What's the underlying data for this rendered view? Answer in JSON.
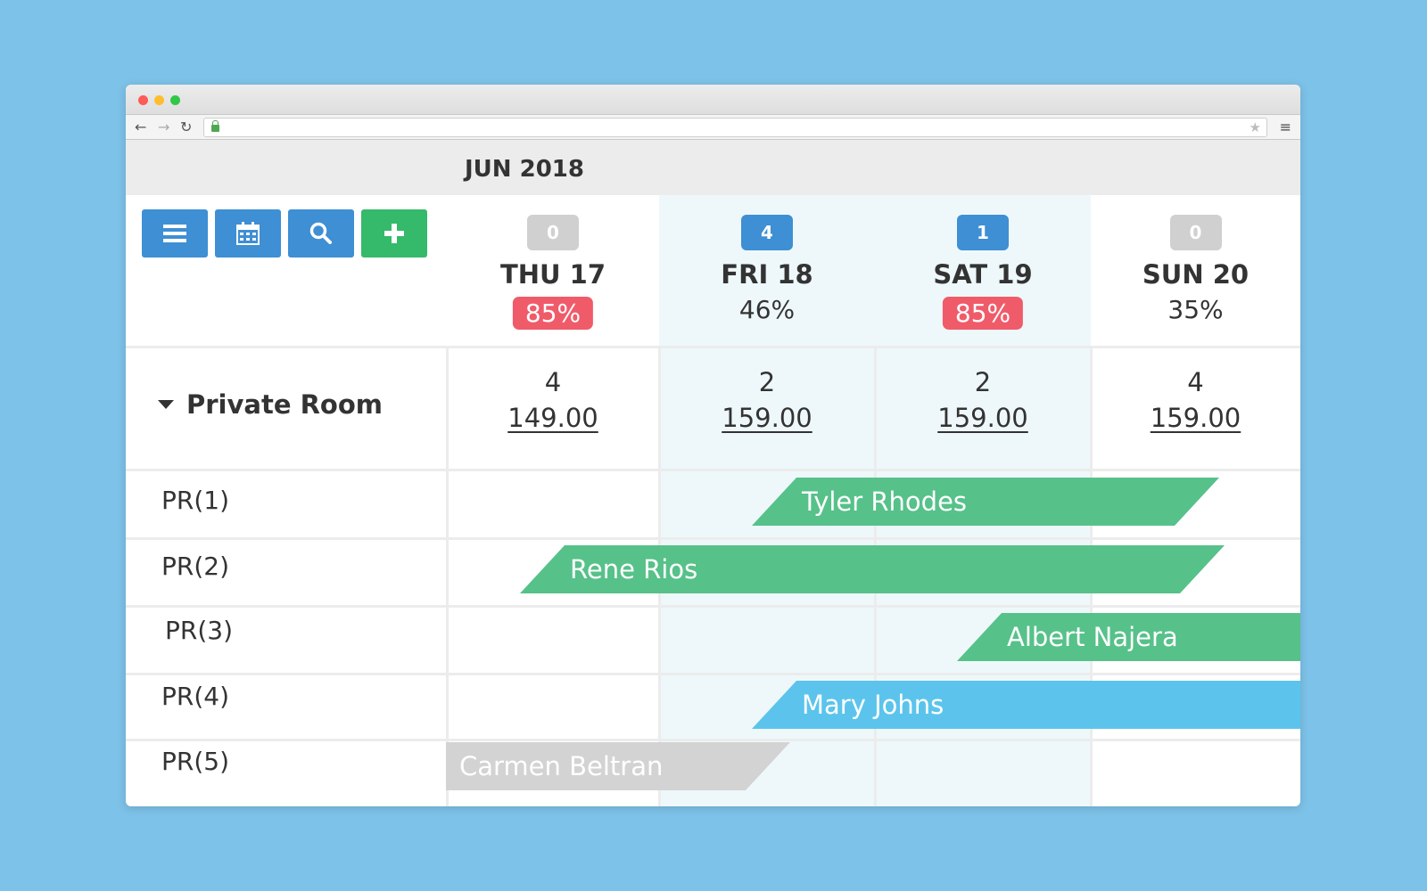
{
  "browser": {
    "back_icon": "arrow-left-icon",
    "forward_icon": "arrow-right-icon",
    "reload_icon": "reload-icon",
    "secure_icon": "lock-icon",
    "bookmark_icon": "star-icon",
    "menu_icon": "hamburger-icon"
  },
  "calendar": {
    "month": "JUN 2018",
    "toolbar": [
      "list-icon",
      "calendar-icon",
      "search-icon",
      "plus-icon"
    ],
    "days": [
      {
        "label": "THU 17",
        "count": "0",
        "occupancy": "85%",
        "highlight": false,
        "high": true
      },
      {
        "label": "FRI 18",
        "count": "4",
        "occupancy": "46%",
        "highlight": true,
        "high": false
      },
      {
        "label": "SAT 19",
        "count": "1",
        "occupancy": "85%",
        "highlight": true,
        "high": true
      },
      {
        "label": "SUN 20",
        "count": "0",
        "occupancy": "35%",
        "highlight": false,
        "high": false
      }
    ],
    "room_type": {
      "name": "Private Room",
      "cells": [
        {
          "available": "4",
          "rate": "149.00"
        },
        {
          "available": "2",
          "rate": "159.00"
        },
        {
          "available": "2",
          "rate": "159.00"
        },
        {
          "available": "4",
          "rate": "159.00"
        }
      ]
    },
    "rooms": [
      "PR(1)",
      "PR(2)",
      "PR(3)",
      "PR(4)",
      "PR(5)"
    ],
    "bookings": [
      {
        "guest": "Tyler Rhodes",
        "room": "PR(1)",
        "status": "confirmed",
        "color": "#57c18a"
      },
      {
        "guest": "Rene Rios",
        "room": "PR(2)",
        "status": "confirmed",
        "color": "#57c18a"
      },
      {
        "guest": "Albert Najera",
        "room": "PR(3)",
        "status": "confirmed",
        "color": "#57c18a"
      },
      {
        "guest": "Mary Johns",
        "room": "PR(4)",
        "status": "checked-in",
        "color": "#5cc4ec"
      },
      {
        "guest": "Carmen Beltran",
        "room": "PR(5)",
        "status": "checked-out",
        "color": "#d3d3d3"
      }
    ]
  }
}
